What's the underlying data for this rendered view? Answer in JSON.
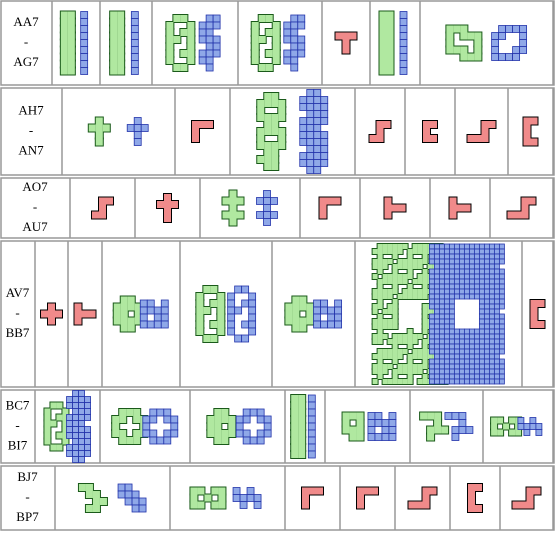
{
  "rows": [
    {
      "label": [
        "AA7",
        "-",
        "AG7"
      ]
    },
    {
      "label": [
        "AH7",
        "-",
        "AN7"
      ]
    },
    {
      "label": [
        "AO7",
        "-",
        "AU7"
      ]
    },
    {
      "label": [
        "AV7",
        "-",
        "BB7"
      ]
    },
    {
      "label": [
        "BC7",
        "-",
        "BI7"
      ]
    },
    {
      "label": [
        "BJ7",
        "-",
        "BP7"
      ]
    }
  ]
}
